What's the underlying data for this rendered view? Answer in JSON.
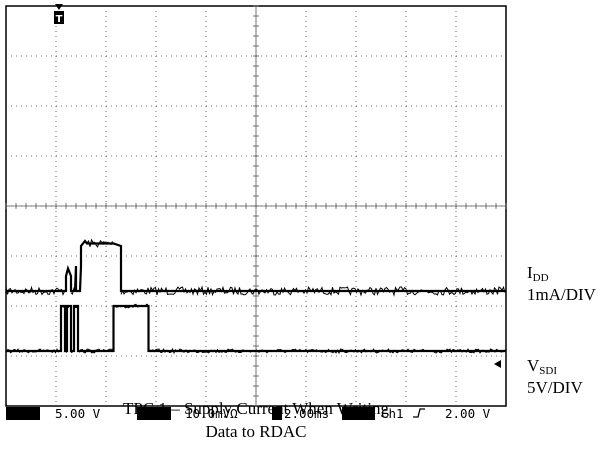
{
  "chart_data": {
    "type": "line",
    "divisions": {
      "x": 10,
      "y": 8
    },
    "trigger_marker": "T",
    "series": [
      {
        "name_main": "I",
        "name_sub": "DD",
        "scale": "1mA/DIV",
        "color": "#000000",
        "baseline_div": 2.3,
        "x_div": [
          0,
          1.2,
          1.2,
          1.24,
          1.3,
          1.3,
          1.38,
          1.4,
          1.4,
          1.48,
          1.5,
          1.5,
          1.58,
          1.62,
          1.62,
          2.15,
          2.3,
          2.3,
          10
        ],
        "y_div": [
          2.3,
          2.3,
          2.6,
          2.75,
          2.6,
          2.3,
          2.3,
          2.8,
          2.3,
          2.3,
          2.8,
          3.2,
          3.3,
          3.25,
          3.25,
          3.25,
          3.2,
          2.3,
          2.3
        ]
      },
      {
        "name_main": "V",
        "name_sub": "SDI",
        "scale": "5V/DIV",
        "color": "#000000",
        "baseline_div": 1.1,
        "x_div": [
          0,
          1.1,
          1.1,
          1.18,
          1.18,
          1.22,
          1.22,
          1.3,
          1.3,
          1.36,
          1.36,
          1.44,
          1.44,
          2.15,
          2.15,
          2.85,
          2.85,
          10
        ],
        "y_div": [
          1.1,
          1.1,
          2.0,
          2.0,
          1.1,
          1.1,
          2.0,
          2.0,
          1.1,
          1.1,
          2.0,
          2.0,
          1.1,
          1.1,
          2.0,
          2.0,
          1.1,
          1.1
        ]
      }
    ],
    "status_bar": [
      "5.00 V",
      "10.0mVΩ",
      "2.00ms",
      "Ch1",
      "2.00 V"
    ],
    "title": "TPC 1 – Supply Current When Writing Data to RDAC"
  },
  "labels": {
    "idd_main": "I",
    "idd_sub": "DD",
    "idd_scale": "1mA/DIV",
    "vsdi_main": "V",
    "vsdi_sub": "SDI",
    "vsdi_scale": "5V/DIV"
  },
  "status": {
    "ch1_volts": "5.00 V",
    "ch2_volts": "10.0mVΩ",
    "timebase": "2.00ms",
    "trigger_source": "Ch1",
    "trigger_level": "2.00 V"
  },
  "caption": {
    "line1": "TPC 1 – Supply Current When Writing",
    "line2": "Data to RDAC"
  }
}
